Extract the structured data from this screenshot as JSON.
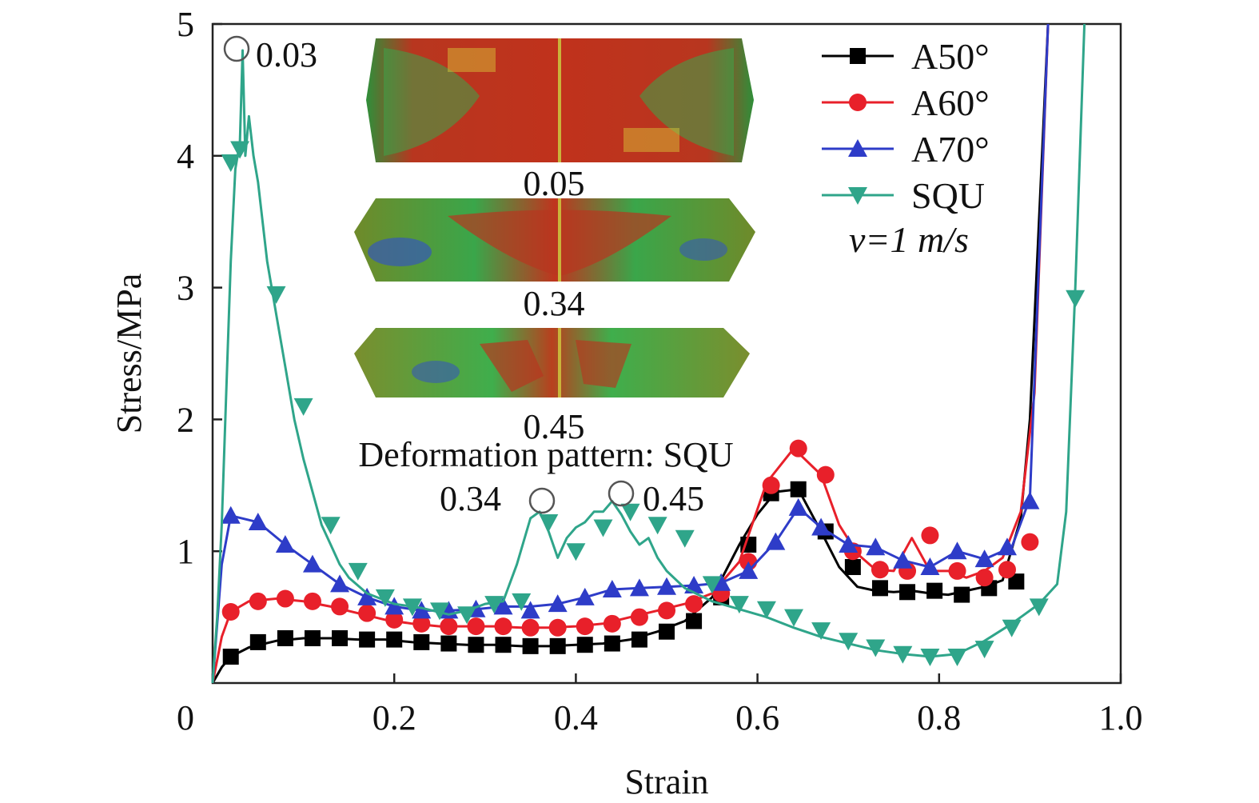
{
  "chart_data": {
    "type": "line",
    "xlabel": "Strain",
    "ylabel": "Stress/MPa",
    "xlim": [
      0,
      1.0
    ],
    "ylim": [
      0,
      5
    ],
    "xticks": [
      0,
      0.2,
      0.4,
      0.6,
      0.8,
      1.0
    ],
    "xtick_labels": [
      "0",
      "0.2",
      "0.4",
      "0.6",
      "0.8",
      "1.0"
    ],
    "yticks": [
      1,
      2,
      3,
      4,
      5
    ],
    "ytick_labels": [
      "1",
      "2",
      "3",
      "4",
      "5"
    ],
    "grid": false,
    "legend_position": "top-right",
    "legend_note": "v=1 m/s",
    "series": [
      {
        "name": "A50°",
        "color": "#000000",
        "marker": "square",
        "x": [
          0,
          0.01,
          0.02,
          0.04,
          0.07,
          0.1,
          0.13,
          0.16,
          0.19,
          0.22,
          0.25,
          0.28,
          0.31,
          0.34,
          0.37,
          0.4,
          0.43,
          0.46,
          0.49,
          0.52,
          0.55,
          0.58,
          0.6,
          0.62,
          0.645,
          0.67,
          0.69,
          0.71,
          0.73,
          0.75,
          0.77,
          0.79,
          0.81,
          0.83,
          0.85,
          0.87,
          0.89,
          0.9,
          0.92
        ],
        "y": [
          0,
          0.12,
          0.2,
          0.27,
          0.32,
          0.34,
          0.34,
          0.33,
          0.33,
          0.31,
          0.3,
          0.29,
          0.29,
          0.28,
          0.28,
          0.29,
          0.3,
          0.33,
          0.39,
          0.47,
          0.65,
          1.05,
          1.28,
          1.45,
          1.47,
          1.15,
          0.88,
          0.73,
          0.7,
          0.69,
          0.7,
          0.68,
          0.67,
          0.7,
          0.73,
          0.78,
          1.25,
          2.0,
          5.0
        ],
        "marker_x": [
          0.02,
          0.05,
          0.08,
          0.11,
          0.14,
          0.17,
          0.2,
          0.23,
          0.26,
          0.29,
          0.32,
          0.35,
          0.38,
          0.41,
          0.44,
          0.47,
          0.5,
          0.53,
          0.56,
          0.59,
          0.615,
          0.645,
          0.675,
          0.705,
          0.735,
          0.765,
          0.795,
          0.825,
          0.855,
          0.885
        ],
        "marker_y": [
          0.2,
          0.31,
          0.34,
          0.34,
          0.34,
          0.33,
          0.33,
          0.31,
          0.3,
          0.29,
          0.29,
          0.28,
          0.28,
          0.29,
          0.3,
          0.33,
          0.39,
          0.47,
          0.65,
          1.05,
          1.44,
          1.47,
          1.15,
          0.88,
          0.72,
          0.69,
          0.7,
          0.67,
          0.72,
          0.77
        ]
      },
      {
        "name": "A60°",
        "color": "#e8202a",
        "marker": "circle",
        "x": [
          0,
          0.01,
          0.02,
          0.04,
          0.07,
          0.1,
          0.13,
          0.16,
          0.19,
          0.22,
          0.25,
          0.28,
          0.31,
          0.34,
          0.37,
          0.4,
          0.43,
          0.46,
          0.49,
          0.52,
          0.55,
          0.58,
          0.61,
          0.64,
          0.67,
          0.69,
          0.71,
          0.73,
          0.75,
          0.77,
          0.79,
          0.81,
          0.83,
          0.85,
          0.87,
          0.89,
          0.905,
          0.92
        ],
        "y": [
          0,
          0.35,
          0.54,
          0.62,
          0.64,
          0.62,
          0.58,
          0.53,
          0.48,
          0.45,
          0.43,
          0.43,
          0.43,
          0.42,
          0.42,
          0.43,
          0.45,
          0.5,
          0.55,
          0.6,
          0.68,
          0.92,
          1.52,
          1.78,
          1.58,
          1.2,
          0.98,
          0.86,
          0.85,
          1.1,
          0.85,
          0.85,
          0.8,
          0.85,
          0.95,
          1.3,
          2.2,
          5.0
        ],
        "marker_x": [
          0.02,
          0.05,
          0.08,
          0.11,
          0.14,
          0.17,
          0.2,
          0.23,
          0.26,
          0.29,
          0.32,
          0.35,
          0.38,
          0.41,
          0.44,
          0.47,
          0.5,
          0.53,
          0.56,
          0.59,
          0.615,
          0.645,
          0.675,
          0.705,
          0.735,
          0.765,
          0.79,
          0.82,
          0.85,
          0.875,
          0.9
        ],
        "marker_y": [
          0.54,
          0.62,
          0.64,
          0.62,
          0.58,
          0.53,
          0.48,
          0.45,
          0.43,
          0.43,
          0.43,
          0.42,
          0.42,
          0.43,
          0.45,
          0.5,
          0.55,
          0.6,
          0.68,
          0.92,
          1.5,
          1.78,
          1.58,
          1.0,
          0.86,
          0.85,
          1.12,
          0.85,
          0.8,
          0.86,
          1.07
        ]
      },
      {
        "name": "A70°",
        "color": "#2e3cc8",
        "marker": "triangle-up",
        "x": [
          0,
          0.01,
          0.02,
          0.05,
          0.08,
          0.11,
          0.14,
          0.17,
          0.2,
          0.23,
          0.26,
          0.29,
          0.32,
          0.35,
          0.38,
          0.41,
          0.44,
          0.47,
          0.5,
          0.53,
          0.56,
          0.59,
          0.62,
          0.645,
          0.67,
          0.7,
          0.73,
          0.76,
          0.79,
          0.82,
          0.85,
          0.88,
          0.9,
          0.92
        ],
        "y": [
          0,
          0.9,
          1.27,
          1.22,
          1.05,
          0.9,
          0.75,
          0.65,
          0.58,
          0.55,
          0.55,
          0.56,
          0.58,
          0.58,
          0.6,
          0.65,
          0.71,
          0.72,
          0.73,
          0.74,
          0.76,
          0.85,
          1.07,
          1.33,
          1.18,
          1.05,
          1.03,
          0.93,
          0.88,
          1.0,
          0.94,
          1.03,
          1.4,
          5.0
        ],
        "marker_x": [
          0.02,
          0.05,
          0.08,
          0.11,
          0.14,
          0.17,
          0.2,
          0.23,
          0.26,
          0.29,
          0.32,
          0.35,
          0.38,
          0.41,
          0.44,
          0.47,
          0.5,
          0.53,
          0.56,
          0.59,
          0.62,
          0.645,
          0.67,
          0.7,
          0.73,
          0.76,
          0.79,
          0.82,
          0.85,
          0.875,
          0.9
        ],
        "marker_y": [
          1.27,
          1.22,
          1.05,
          0.9,
          0.75,
          0.65,
          0.58,
          0.55,
          0.55,
          0.56,
          0.58,
          0.55,
          0.6,
          0.65,
          0.71,
          0.72,
          0.73,
          0.74,
          0.76,
          0.85,
          1.07,
          1.33,
          1.18,
          1.05,
          1.03,
          0.93,
          0.88,
          1.0,
          0.94,
          1.03,
          1.38
        ]
      },
      {
        "name": "SQU",
        "color": "#2fa58a",
        "marker": "triangle-down",
        "x": [
          0,
          0.005,
          0.01,
          0.015,
          0.02,
          0.025,
          0.03,
          0.033,
          0.036,
          0.04,
          0.045,
          0.05,
          0.06,
          0.07,
          0.08,
          0.09,
          0.1,
          0.11,
          0.12,
          0.13,
          0.14,
          0.15,
          0.17,
          0.2,
          0.23,
          0.26,
          0.28,
          0.3,
          0.32,
          0.335,
          0.35,
          0.36,
          0.37,
          0.38,
          0.39,
          0.4,
          0.41,
          0.42,
          0.43,
          0.44,
          0.45,
          0.46,
          0.47,
          0.48,
          0.49,
          0.5,
          0.52,
          0.55,
          0.58,
          0.61,
          0.64,
          0.67,
          0.7,
          0.73,
          0.76,
          0.79,
          0.82,
          0.85,
          0.88,
          0.91,
          0.93,
          0.94,
          0.95,
          0.96
        ],
        "y": [
          0,
          0.5,
          1.2,
          2.2,
          3.2,
          3.9,
          4.1,
          4.8,
          4.0,
          4.3,
          4.0,
          3.8,
          3.2,
          2.8,
          2.4,
          2.0,
          1.7,
          1.45,
          1.2,
          1.05,
          0.9,
          0.8,
          0.68,
          0.6,
          0.57,
          0.52,
          0.55,
          0.6,
          0.62,
          0.9,
          1.25,
          1.3,
          1.15,
          0.95,
          1.1,
          1.18,
          1.22,
          1.3,
          1.3,
          1.38,
          1.28,
          1.15,
          1.05,
          1.1,
          0.95,
          0.85,
          0.72,
          0.62,
          0.56,
          0.5,
          0.42,
          0.35,
          0.3,
          0.25,
          0.22,
          0.2,
          0.22,
          0.32,
          0.45,
          0.6,
          0.75,
          1.3,
          3.0,
          5.0
        ],
        "marker_x": [
          0.02,
          0.03,
          0.07,
          0.1,
          0.13,
          0.16,
          0.19,
          0.22,
          0.25,
          0.28,
          0.31,
          0.34,
          0.37,
          0.4,
          0.43,
          0.46,
          0.49,
          0.52,
          0.55,
          0.58,
          0.61,
          0.64,
          0.67,
          0.7,
          0.73,
          0.76,
          0.79,
          0.82,
          0.85,
          0.88,
          0.91,
          0.95
        ],
        "marker_y": [
          3.95,
          4.05,
          2.95,
          2.1,
          1.2,
          0.85,
          0.65,
          0.58,
          0.55,
          0.52,
          0.6,
          0.62,
          1.22,
          1.0,
          1.18,
          1.3,
          1.2,
          1.1,
          0.75,
          0.6,
          0.56,
          0.5,
          0.4,
          0.32,
          0.27,
          0.22,
          0.2,
          0.2,
          0.26,
          0.42,
          0.58,
          2.92
        ]
      }
    ],
    "annotations": [
      {
        "label": "0.03",
        "x": 0.033,
        "y": 4.8
      },
      {
        "label": "0.34",
        "x": 0.36,
        "y": 1.37
      },
      {
        "label": "0.45",
        "x": 0.45,
        "y": 1.42
      }
    ],
    "inset": {
      "caption": "Deformation pattern: SQU",
      "panels": [
        "0.05",
        "0.34",
        "0.45"
      ]
    }
  }
}
